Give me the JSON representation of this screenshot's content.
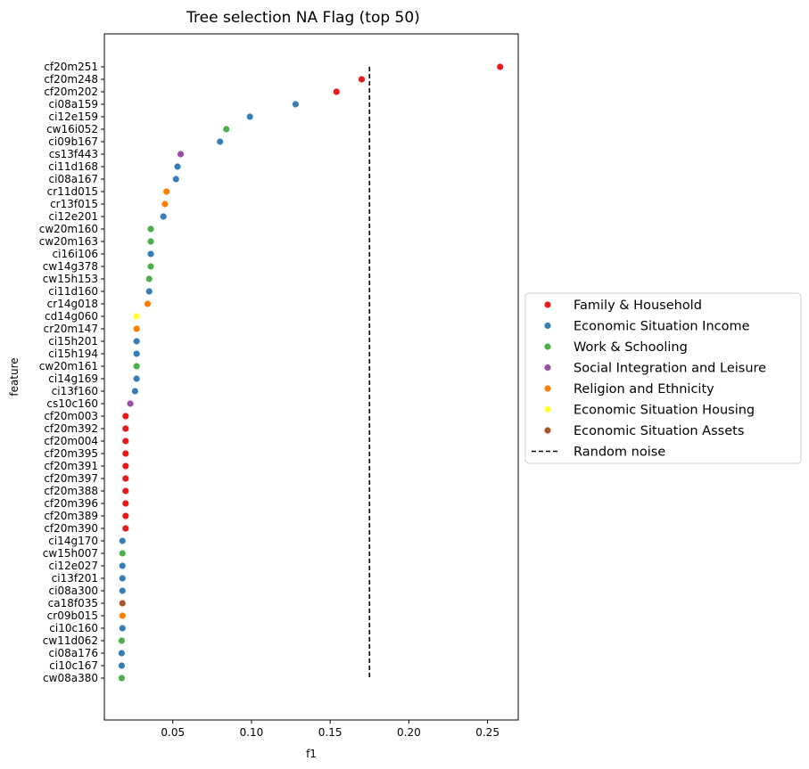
{
  "chart_data": {
    "type": "scatter",
    "title": "Tree selection NA Flag (top 50)",
    "xlabel": "f1",
    "ylabel": "feature",
    "xlim": [
      0.0065,
      0.2695
    ],
    "xticks": [
      "0.05",
      "0.10",
      "0.15",
      "0.20",
      "0.25"
    ],
    "grid": false,
    "legend_position": "center-right-outside",
    "categories": [
      {
        "name": "Family & Household",
        "color": "#e41a1c"
      },
      {
        "name": "Economic Situation Income",
        "color": "#377eb8"
      },
      {
        "name": "Work & Schooling",
        "color": "#4daf4a"
      },
      {
        "name": "Social Integration and Leisure",
        "color": "#984ea3"
      },
      {
        "name": "Religion and Ethnicity",
        "color": "#ff7f00"
      },
      {
        "name": "Economic Situation Housing",
        "color": "#ffff33"
      },
      {
        "name": "Economic Situation Assets",
        "color": "#a65628"
      }
    ],
    "reference_line": {
      "name": "Random noise",
      "x": 0.175
    },
    "points": [
      {
        "feature": "cf20m251",
        "f1": 0.258,
        "category": 0
      },
      {
        "feature": "cf20m248",
        "f1": 0.17,
        "category": 0
      },
      {
        "feature": "cf20m202",
        "f1": 0.154,
        "category": 0
      },
      {
        "feature": "ci08a159",
        "f1": 0.128,
        "category": 1
      },
      {
        "feature": "ci12e159",
        "f1": 0.099,
        "category": 1
      },
      {
        "feature": "cw16i052",
        "f1": 0.084,
        "category": 2
      },
      {
        "feature": "ci09b167",
        "f1": 0.08,
        "category": 1
      },
      {
        "feature": "cs13f443",
        "f1": 0.055,
        "category": 3
      },
      {
        "feature": "ci11d168",
        "f1": 0.053,
        "category": 1
      },
      {
        "feature": "ci08a167",
        "f1": 0.052,
        "category": 1
      },
      {
        "feature": "cr11d015",
        "f1": 0.046,
        "category": 4
      },
      {
        "feature": "cr13f015",
        "f1": 0.045,
        "category": 4
      },
      {
        "feature": "ci12e201",
        "f1": 0.044,
        "category": 1
      },
      {
        "feature": "cw20m160",
        "f1": 0.036,
        "category": 2
      },
      {
        "feature": "cw20m163",
        "f1": 0.036,
        "category": 2
      },
      {
        "feature": "ci16i106",
        "f1": 0.036,
        "category": 1
      },
      {
        "feature": "cw14g378",
        "f1": 0.036,
        "category": 2
      },
      {
        "feature": "cw15h153",
        "f1": 0.035,
        "category": 2
      },
      {
        "feature": "ci11d160",
        "f1": 0.035,
        "category": 1
      },
      {
        "feature": "cr14g018",
        "f1": 0.034,
        "category": 4
      },
      {
        "feature": "cd14g060",
        "f1": 0.027,
        "category": 5
      },
      {
        "feature": "cr20m147",
        "f1": 0.027,
        "category": 4
      },
      {
        "feature": "ci15h201",
        "f1": 0.027,
        "category": 1
      },
      {
        "feature": "ci15h194",
        "f1": 0.027,
        "category": 1
      },
      {
        "feature": "cw20m161",
        "f1": 0.027,
        "category": 2
      },
      {
        "feature": "ci14g169",
        "f1": 0.027,
        "category": 1
      },
      {
        "feature": "ci13f160",
        "f1": 0.026,
        "category": 1
      },
      {
        "feature": "cs10c160",
        "f1": 0.023,
        "category": 3
      },
      {
        "feature": "cf20m003",
        "f1": 0.02,
        "category": 0
      },
      {
        "feature": "cf20m392",
        "f1": 0.02,
        "category": 0
      },
      {
        "feature": "cf20m004",
        "f1": 0.02,
        "category": 0
      },
      {
        "feature": "cf20m395",
        "f1": 0.02,
        "category": 0
      },
      {
        "feature": "cf20m391",
        "f1": 0.02,
        "category": 0
      },
      {
        "feature": "cf20m397",
        "f1": 0.02,
        "category": 0
      },
      {
        "feature": "cf20m388",
        "f1": 0.02,
        "category": 0
      },
      {
        "feature": "cf20m396",
        "f1": 0.02,
        "category": 0
      },
      {
        "feature": "cf20m389",
        "f1": 0.02,
        "category": 0
      },
      {
        "feature": "cf20m390",
        "f1": 0.02,
        "category": 0
      },
      {
        "feature": "ci14g170",
        "f1": 0.018,
        "category": 1
      },
      {
        "feature": "cw15h007",
        "f1": 0.018,
        "category": 2
      },
      {
        "feature": "ci12e027",
        "f1": 0.018,
        "category": 1
      },
      {
        "feature": "ci13f201",
        "f1": 0.018,
        "category": 1
      },
      {
        "feature": "ci08a300",
        "f1": 0.018,
        "category": 1
      },
      {
        "feature": "ca18f035",
        "f1": 0.018,
        "category": 6
      },
      {
        "feature": "cr09b015",
        "f1": 0.018,
        "category": 4
      },
      {
        "feature": "ci10c160",
        "f1": 0.018,
        "category": 1
      },
      {
        "feature": "cw11d062",
        "f1": 0.0175,
        "category": 2
      },
      {
        "feature": "ci08a176",
        "f1": 0.0175,
        "category": 1
      },
      {
        "feature": "ci10c167",
        "f1": 0.0175,
        "category": 1
      },
      {
        "feature": "cw08a380",
        "f1": 0.0175,
        "category": 2
      }
    ]
  }
}
